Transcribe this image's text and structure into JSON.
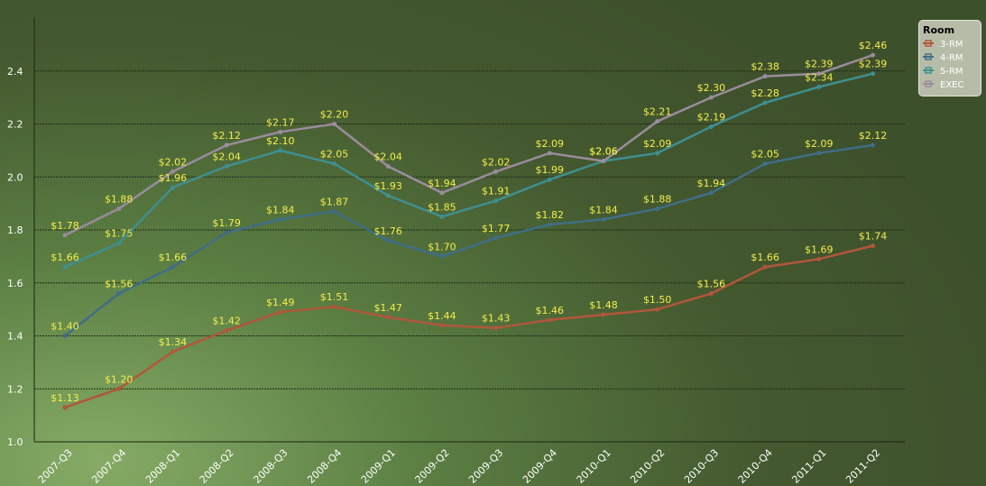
{
  "chart_data": {
    "type": "line",
    "categories": [
      "2007-Q3",
      "2007-Q4",
      "2008-Q1",
      "2008-Q2",
      "2008-Q3",
      "2008-Q4",
      "2009-Q1",
      "2009-Q2",
      "2009-Q3",
      "2009-Q4",
      "2010-Q1",
      "2010-Q2",
      "2010-Q3",
      "2010-Q4",
      "2011-Q1",
      "2011-Q2"
    ],
    "series": [
      {
        "name": "3-RM",
        "color": "#b0573a",
        "values": [
          1.13,
          1.2,
          1.34,
          1.42,
          1.49,
          1.51,
          1.47,
          1.44,
          1.43,
          1.46,
          1.48,
          1.5,
          1.56,
          1.66,
          1.69,
          1.74
        ],
        "labels": [
          "$1.13",
          "$1.20",
          "$1.34",
          "$1.42",
          "$1.49",
          "$1.51",
          "$1.47",
          "$1.44",
          "$1.43",
          "$1.46",
          "$1.48",
          "$1.50",
          "$1.56",
          "$1.66",
          "$1.69",
          "$1.74"
        ]
      },
      {
        "name": "4-RM",
        "color": "#3f6e86",
        "values": [
          1.4,
          1.56,
          1.66,
          1.79,
          1.84,
          1.87,
          1.76,
          1.7,
          1.77,
          1.82,
          1.84,
          1.88,
          1.94,
          2.05,
          2.09,
          2.12
        ],
        "labels": [
          "$1.40",
          "$1.56",
          "$1.66",
          "$1.79",
          "$1.84",
          "$1.87",
          "$1.76",
          "$1.70",
          "$1.77",
          "$1.82",
          "$1.84",
          "$1.88",
          "$1.94",
          "$2.05",
          "$2.09",
          "$2.12"
        ]
      },
      {
        "name": "5-RM",
        "color": "#3f8f8f",
        "values": [
          1.66,
          1.75,
          1.96,
          2.04,
          2.1,
          2.05,
          1.93,
          1.85,
          1.91,
          1.99,
          2.06,
          2.09,
          2.19,
          2.28,
          2.34,
          2.39
        ],
        "labels": [
          "$1.66",
          "$1.75",
          "$1.96",
          "$2.04",
          "$2.10",
          "$2.05",
          "$1.93",
          "$1.85",
          "$1.91",
          "$1.99",
          "$2.06",
          "$2.09",
          "$2.19",
          "$2.28",
          "$2.34",
          "$2.39"
        ]
      },
      {
        "name": "EXEC",
        "color": "#9b8c9c",
        "values": [
          1.78,
          1.88,
          2.02,
          2.12,
          2.17,
          2.2,
          2.04,
          1.94,
          2.02,
          2.09,
          2.06,
          2.21,
          2.3,
          2.38,
          2.39,
          2.46
        ],
        "labels": [
          "$1.78",
          "$1.88",
          "$2.02",
          "$2.12",
          "$2.17",
          "$2.20",
          "$2.04",
          "$1.94",
          "$2.02",
          "$2.09",
          "$2.06",
          "$2.21",
          "$2.30",
          "$2.38",
          "$2.39",
          "$2.46"
        ]
      }
    ],
    "ylim": [
      1.0,
      2.6
    ],
    "yticks": [
      "1.0",
      "1.2",
      "1.4",
      "1.6",
      "1.8",
      "2.0",
      "2.2",
      "2.4"
    ],
    "grid": true,
    "legend": {
      "title": "Room",
      "placement": "top-right"
    }
  }
}
